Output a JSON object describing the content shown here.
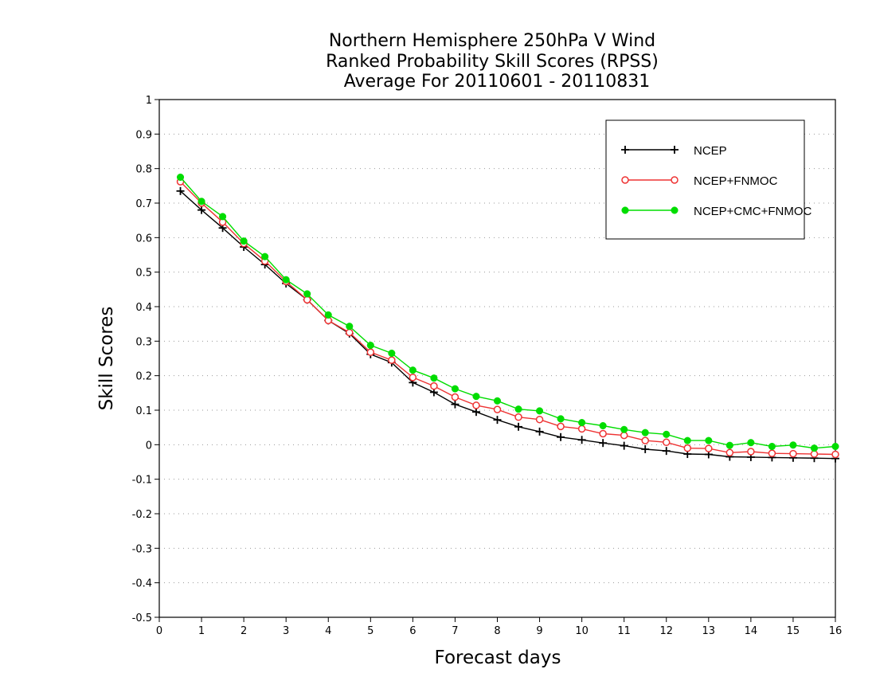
{
  "chart_data": {
    "type": "line",
    "title_lines": [
      "Northern Hemisphere 250hPa V Wind",
      "Ranked Probability Skill Scores (RPSS)",
      "Average For 20110601 - 20110831"
    ],
    "xlabel": "Forecast days",
    "ylabel": "Skill Scores",
    "xlim": [
      0,
      16
    ],
    "ylim": [
      -0.5,
      1
    ],
    "x_ticks": [
      "0",
      "1",
      "2",
      "3",
      "4",
      "5",
      "6",
      "7",
      "8",
      "9",
      "10",
      "11",
      "12",
      "13",
      "14",
      "15",
      "16"
    ],
    "y_ticks": [
      "1",
      "0.9",
      "0.8",
      "0.7",
      "0.6",
      "0.5",
      "0.4",
      "0.3",
      "0.2",
      "0.1",
      "0",
      "-0.1",
      "-0.2",
      "-0.3",
      "-0.4",
      "-0.5"
    ],
    "grid": "dotted horizontal",
    "legend_position": "top-right",
    "x": [
      0.5,
      1,
      1.5,
      2,
      2.5,
      3,
      3.5,
      4,
      4.5,
      5,
      5.5,
      6,
      6.5,
      7,
      7.5,
      8,
      8.5,
      9,
      9.5,
      10,
      10.5,
      11,
      11.5,
      12,
      12.5,
      13,
      13.5,
      14,
      14.5,
      15,
      15.5,
      16
    ],
    "series": [
      {
        "name": "NCEP",
        "color": "#000000",
        "marker": "plus",
        "values": [
          0.735,
          0.68,
          0.628,
          0.573,
          0.522,
          0.467,
          0.42,
          0.36,
          0.322,
          0.262,
          0.238,
          0.18,
          0.152,
          0.117,
          0.095,
          0.072,
          0.052,
          0.038,
          0.022,
          0.014,
          0.005,
          -0.003,
          -0.013,
          -0.018,
          -0.027,
          -0.028,
          -0.035,
          -0.036,
          -0.037,
          -0.038,
          -0.039,
          -0.04
        ]
      },
      {
        "name": "NCEP+FNMOC",
        "color": "#ee3333",
        "marker": "open-circle",
        "values": [
          0.762,
          0.7,
          0.645,
          0.583,
          0.532,
          0.473,
          0.42,
          0.36,
          0.325,
          0.268,
          0.245,
          0.195,
          0.17,
          0.138,
          0.114,
          0.102,
          0.08,
          0.073,
          0.053,
          0.046,
          0.032,
          0.027,
          0.012,
          0.007,
          -0.01,
          -0.011,
          -0.023,
          -0.02,
          -0.025,
          -0.026,
          -0.027,
          -0.028
        ]
      },
      {
        "name": "NCEP+CMC+FNMOC",
        "color": "#00dd00",
        "marker": "filled-circle",
        "values": [
          0.775,
          0.705,
          0.661,
          0.59,
          0.545,
          0.478,
          0.437,
          0.376,
          0.343,
          0.288,
          0.265,
          0.216,
          0.193,
          0.162,
          0.14,
          0.127,
          0.103,
          0.098,
          0.075,
          0.064,
          0.055,
          0.044,
          0.035,
          0.03,
          0.012,
          0.012,
          -0.002,
          0.006,
          -0.005,
          -0.001,
          -0.01,
          -0.005
        ]
      }
    ]
  }
}
